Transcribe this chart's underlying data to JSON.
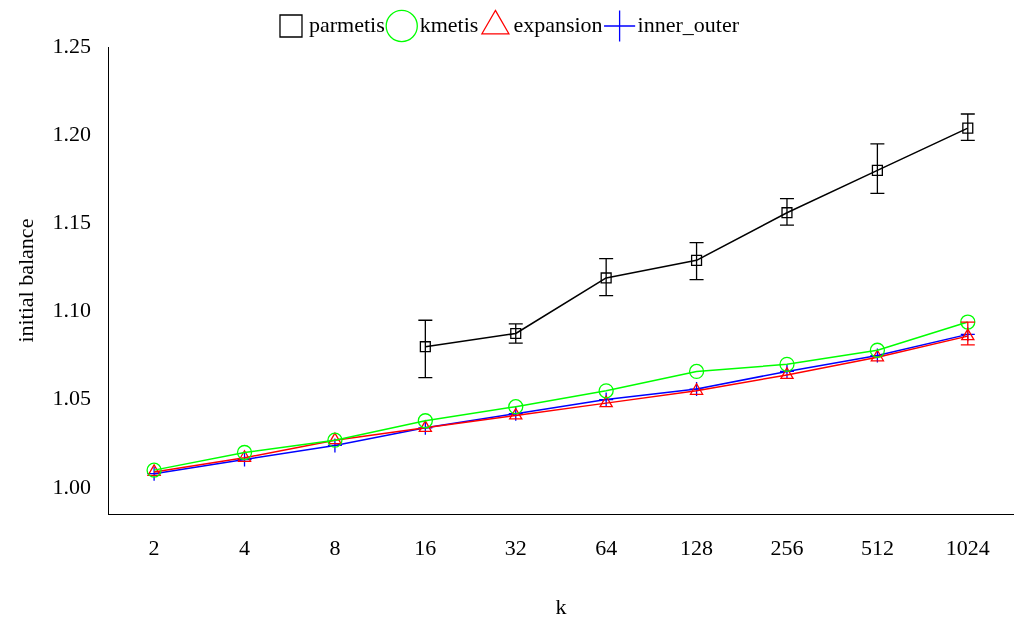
{
  "chart_data": {
    "type": "line",
    "xlabel": "k",
    "ylabel": "initial balance",
    "categories": [
      "2",
      "4",
      "8",
      "16",
      "32",
      "64",
      "128",
      "256",
      "512",
      "1024"
    ],
    "ylim": [
      0.985,
      1.25
    ],
    "yticks": [
      {
        "value": 1,
        "label": "1.00"
      },
      {
        "value": 1.05,
        "label": "1.05"
      },
      {
        "value": 1.1,
        "label": "1.10"
      },
      {
        "value": 1.15,
        "label": "1.15"
      },
      {
        "value": 1.2,
        "label": "1.20"
      },
      {
        "value": 1.25,
        "label": "1.25"
      }
    ],
    "grid": false,
    "legend": "top",
    "series": [
      {
        "name": "parmetis",
        "color": "#000000",
        "marker": "square",
        "values": [
          null,
          null,
          null,
          1.08,
          1.0875,
          1.119,
          1.129,
          1.156,
          1.18,
          1.204
        ],
        "errors": [
          null,
          null,
          null,
          [
            1.0625,
            1.095
          ],
          [
            1.082,
            1.093
          ],
          [
            1.109,
            1.13
          ],
          [
            1.118,
            1.139
          ],
          [
            1.149,
            1.164
          ],
          [
            1.167,
            1.195
          ],
          [
            1.197,
            1.212
          ]
        ]
      },
      {
        "name": "kmetis",
        "color": "#00ff00",
        "marker": "circle",
        "values": [
          1.01,
          1.02,
          1.027,
          1.038,
          1.046,
          1.055,
          1.066,
          1.07,
          1.078,
          1.094
        ]
      },
      {
        "name": "expansion",
        "color": "#ff0000",
        "marker": "triangle",
        "values": [
          1.009,
          1.017,
          1.027,
          1.034,
          1.041,
          1.048,
          1.055,
          1.064,
          1.074,
          1.086
        ],
        "errors": [
          null,
          null,
          null,
          null,
          null,
          null,
          null,
          null,
          null,
          [
            1.081,
            1.094
          ]
        ]
      },
      {
        "name": "inner_outer",
        "color": "#0000ff",
        "marker": "cross",
        "values": [
          1.008,
          1.016,
          1.024,
          1.034,
          1.042,
          1.05,
          1.056,
          1.066,
          1.075,
          1.087
        ]
      }
    ]
  }
}
